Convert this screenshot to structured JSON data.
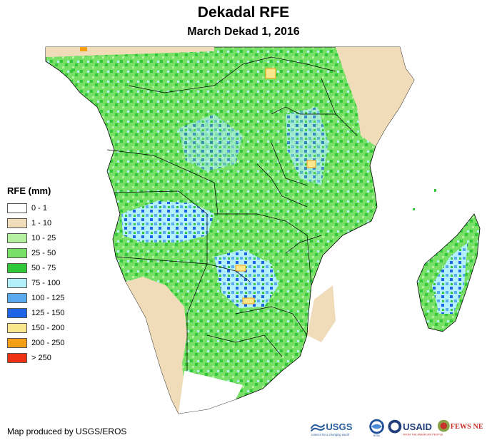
{
  "title": "Dekadal RFE",
  "subtitle": "March Dekad 1, 2016",
  "legend": {
    "title": "RFE (mm)",
    "items": [
      {
        "label": "0 - 1",
        "color": "#ffffff"
      },
      {
        "label": "1 - 10",
        "color": "#f0dcb8"
      },
      {
        "label": "10 - 25",
        "color": "#b4f0a0"
      },
      {
        "label": "25 - 50",
        "color": "#78e066"
      },
      {
        "label": "50 - 75",
        "color": "#32c83c"
      },
      {
        "label": "75 - 100",
        "color": "#b4f0fa"
      },
      {
        "label": "100 - 125",
        "color": "#5aaaf0"
      },
      {
        "label": "125 - 150",
        "color": "#1e64e6"
      },
      {
        "label": "150 - 200",
        "color": "#fae68c"
      },
      {
        "label": "200 - 250",
        "color": "#f5a014"
      },
      {
        "label": "> 250",
        "color": "#f03214"
      }
    ]
  },
  "credit": "Map produced by USGS/EROS",
  "logos": {
    "usgs": "USGS",
    "usgs_tagline": "science for a changing world",
    "noaa": "NOAA",
    "usaid": "USAID",
    "usaid_tagline": "FROM THE AMERICAN PEOPLE",
    "fewsnet": "FEWS NET"
  }
}
